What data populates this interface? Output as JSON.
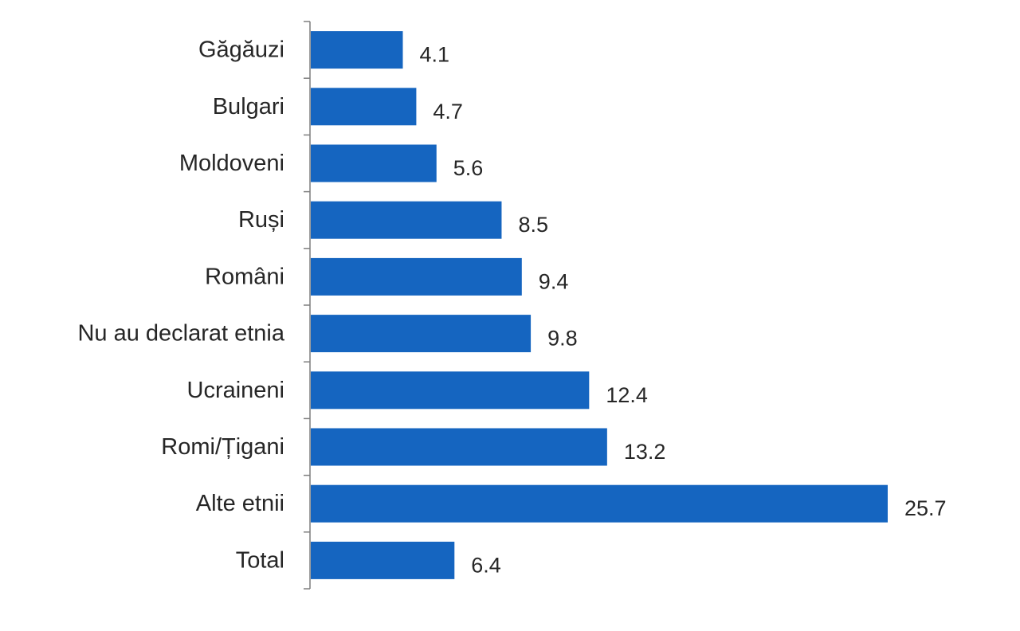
{
  "chart_data": {
    "type": "bar",
    "orientation": "horizontal",
    "title": "",
    "xlabel": "",
    "ylabel": "",
    "categories": [
      "Găgăuzi",
      "Bulgari",
      "Moldoveni",
      "Ruși",
      "Români",
      "Nu au declarat etnia",
      "Ucraineni",
      "Romi/Țigani",
      "Alte etnii",
      "Total"
    ],
    "values": [
      4.1,
      4.7,
      5.6,
      8.5,
      9.4,
      9.8,
      12.4,
      13.2,
      25.7,
      6.4
    ],
    "value_labels": [
      "4.1",
      "4.7",
      "5.6",
      "8.5",
      "9.4",
      "9.8",
      "12.4",
      "13.2",
      "25.7",
      "6.4"
    ],
    "xlim": [
      0,
      25.7
    ],
    "grid": false,
    "legend": "none",
    "bar_color": "#1565C0",
    "axis_color": "#7f7f7f",
    "text_color": "#262626"
  }
}
